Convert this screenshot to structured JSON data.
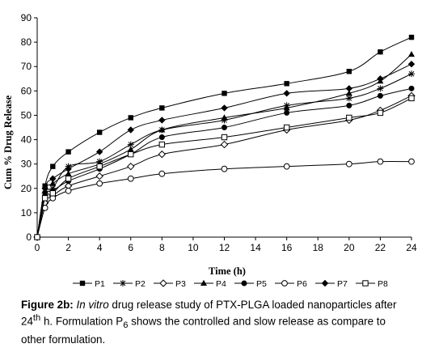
{
  "chart_data": {
    "type": "line",
    "title": "",
    "xlabel": "Time (h)",
    "ylabel": "Cum % Drug Release",
    "xlim": [
      0,
      24
    ],
    "ylim": [
      0,
      90
    ],
    "xticks": [
      0,
      2,
      4,
      6,
      8,
      10,
      12,
      14,
      16,
      18,
      20,
      22,
      24
    ],
    "yticks": [
      0,
      10,
      20,
      30,
      40,
      50,
      60,
      70,
      80,
      90
    ],
    "grid": false,
    "legend_position": "bottom",
    "x": [
      0,
      0.5,
      1,
      2,
      4,
      6,
      8,
      12,
      16,
      20,
      22,
      24
    ],
    "series": [
      {
        "name": "P1",
        "marker": "filled-square",
        "values": [
          0,
          21,
          29,
          35,
          43,
          49,
          53,
          59,
          63,
          68,
          76,
          82
        ]
      },
      {
        "name": "P2",
        "marker": "star",
        "values": [
          0,
          18,
          20,
          29,
          31,
          38,
          44,
          48,
          54,
          57,
          61,
          67
        ]
      },
      {
        "name": "P3",
        "marker": "open-diamond",
        "values": [
          0,
          14,
          17,
          21,
          25,
          29,
          34,
          38,
          44,
          48,
          52,
          58
        ]
      },
      {
        "name": "P4",
        "marker": "filled-triangle",
        "values": [
          0,
          19,
          22,
          26,
          30,
          36,
          44,
          49,
          53,
          59,
          64,
          75
        ]
      },
      {
        "name": "P5",
        "marker": "filled-circle",
        "values": [
          0,
          17,
          19,
          23,
          28,
          34,
          41,
          45,
          51,
          54,
          58,
          61
        ]
      },
      {
        "name": "P6",
        "marker": "open-circle",
        "values": [
          0,
          12,
          16,
          19,
          22,
          24,
          26,
          28,
          29,
          30,
          31,
          31
        ]
      },
      {
        "name": "P7",
        "marker": "filled-diamond",
        "values": [
          0,
          20,
          24,
          28,
          35,
          44,
          48,
          53,
          59,
          61,
          65,
          71
        ]
      },
      {
        "name": "P8",
        "marker": "open-square",
        "values": [
          0,
          16,
          18,
          24,
          29,
          34,
          38,
          41,
          45,
          49,
          51,
          57
        ]
      }
    ]
  },
  "caption": {
    "lead": "Figure 2b:",
    "italic": "In vitro",
    "part1": " drug release study of PTX-PLGA loaded nanoparticles after 24",
    "sup": "th",
    "part2": " h. Formulation P",
    "sub": "6",
    "part3": " shows the controlled and slow release as compare to other formulation."
  },
  "colors": {
    "line": "#000000",
    "background": "#ffffff"
  }
}
